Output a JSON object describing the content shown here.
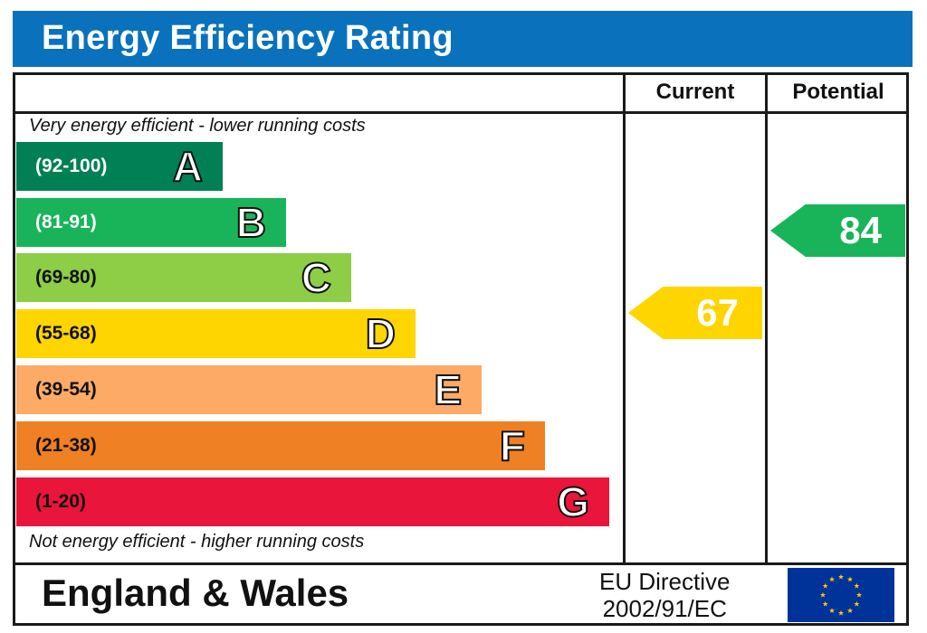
{
  "title": "Energy Efficiency Rating",
  "columns": {
    "current": "Current",
    "potential": "Potential"
  },
  "notes": {
    "top": "Very energy efficient - lower running costs",
    "bottom": "Not energy efficient - higher running costs"
  },
  "bands": [
    {
      "letter": "A",
      "range": "(92-100)",
      "color": "#008054"
    },
    {
      "letter": "B",
      "range": "(81-91)",
      "color": "#19b459"
    },
    {
      "letter": "C",
      "range": "(69-80)",
      "color": "#8dce46"
    },
    {
      "letter": "D",
      "range": "(55-68)",
      "color": "#ffd500"
    },
    {
      "letter": "E",
      "range": "(39-54)",
      "color": "#fcaa65"
    },
    {
      "letter": "F",
      "range": "(21-38)",
      "color": "#ef8023"
    },
    {
      "letter": "G",
      "range": "(1-20)",
      "color": "#e9153b"
    }
  ],
  "current": {
    "value": "67",
    "band": "D",
    "color": "#ffd500"
  },
  "potential": {
    "value": "84",
    "band": "B",
    "color": "#19b459"
  },
  "footer": {
    "region": "England & Wales",
    "directive_line1": "EU Directive",
    "directive_line2": "2002/91/EC",
    "flag_icon": "eu-flag-icon"
  }
}
